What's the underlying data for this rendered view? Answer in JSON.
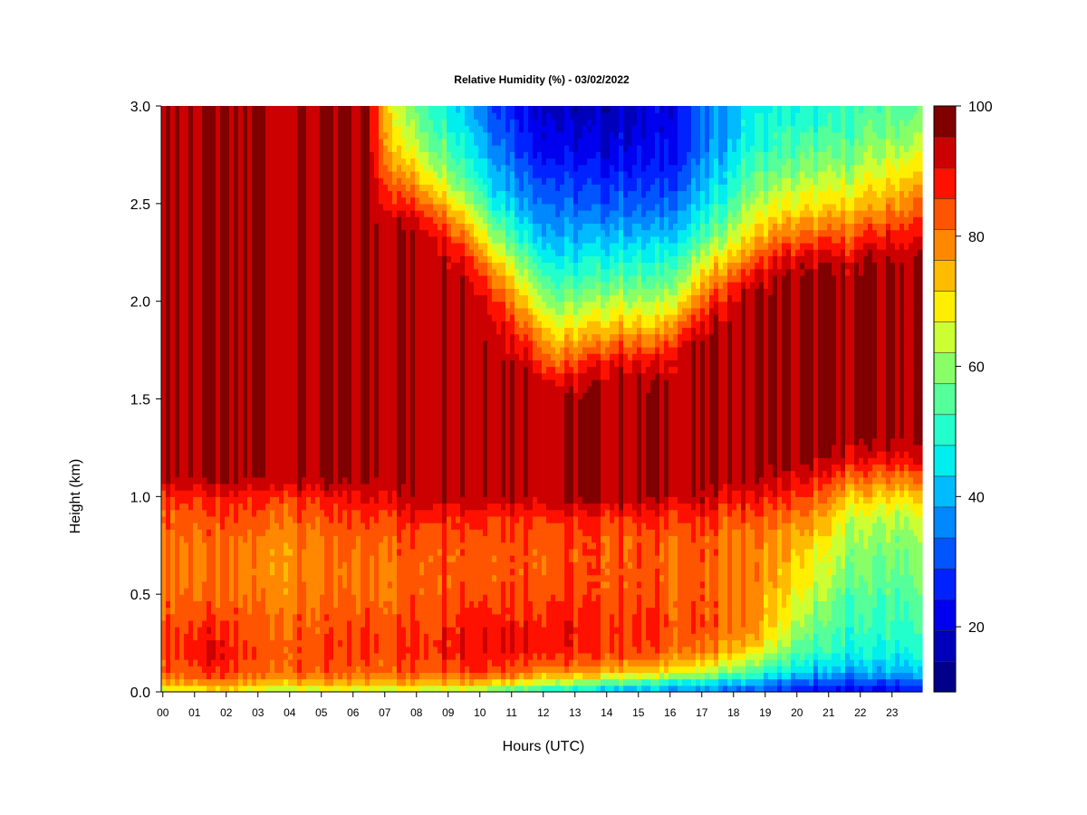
{
  "chart_data": {
    "type": "heatmap",
    "title": "Relative Humidity (%) - 03/02/2022",
    "xlabel": "Hours (UTC)",
    "ylabel": "Height (km)",
    "xlim": [
      0,
      24
    ],
    "ylim": [
      0,
      3
    ],
    "x_ticks": [
      "00",
      "01",
      "02",
      "03",
      "04",
      "05",
      "06",
      "07",
      "08",
      "09",
      "10",
      "11",
      "12",
      "13",
      "14",
      "15",
      "16",
      "17",
      "18",
      "19",
      "20",
      "21",
      "22",
      "23"
    ],
    "y_ticks": [
      "0.0",
      "0.5",
      "1.0",
      "1.5",
      "2.0",
      "2.5",
      "3.0"
    ],
    "y_tick_values": [
      0,
      0.5,
      1.0,
      1.5,
      2.0,
      2.5,
      3.0
    ],
    "colorbar": {
      "range": [
        10,
        100
      ],
      "step": 5,
      "labels": [
        "20",
        "40",
        "60",
        "80",
        "100"
      ],
      "label_values": [
        20,
        40,
        60,
        80,
        100
      ],
      "colors": [
        "#00008B",
        "#0000BB",
        "#0000EE",
        "#0022FF",
        "#0055FF",
        "#0088FF",
        "#00BBFF",
        "#00EEEE",
        "#22FFCC",
        "#55FF99",
        "#88FF66",
        "#CCFF33",
        "#FFEE00",
        "#FFBB00",
        "#FF8800",
        "#FF5500",
        "#FF1100",
        "#CC0000",
        "#800000"
      ]
    },
    "height_profiles_km": [
      0,
      0.05,
      0.1,
      0.2,
      0.3,
      0.4,
      0.5,
      0.6,
      0.7,
      0.8,
      0.9,
      1.0,
      1.1,
      1.2,
      1.3,
      1.4,
      1.5,
      1.6,
      1.7,
      1.8,
      1.9,
      2.0,
      2.1,
      2.2,
      2.3,
      2.4,
      2.5,
      2.6,
      2.7,
      2.8,
      2.9,
      3.0
    ],
    "hourly_profiles": [
      {
        "hour": 0,
        "rh": [
          68,
          80,
          88,
          90,
          90,
          88,
          86,
          85,
          85,
          86,
          88,
          92,
          100,
          100,
          100,
          100,
          100,
          100,
          100,
          100,
          100,
          100,
          100,
          100,
          100,
          100,
          100,
          100,
          100,
          100,
          100,
          100
        ]
      },
      {
        "hour": 1,
        "rh": [
          70,
          82,
          90,
          95,
          92,
          88,
          86,
          84,
          84,
          85,
          88,
          92,
          100,
          100,
          100,
          100,
          100,
          100,
          100,
          100,
          100,
          100,
          100,
          100,
          100,
          100,
          100,
          100,
          100,
          100,
          100,
          100
        ]
      },
      {
        "hour": 2,
        "rh": [
          68,
          80,
          88,
          90,
          88,
          86,
          84,
          83,
          83,
          85,
          88,
          92,
          100,
          100,
          100,
          100,
          100,
          100,
          100,
          100,
          100,
          100,
          100,
          100,
          100,
          100,
          100,
          100,
          100,
          100,
          100,
          100
        ]
      },
      {
        "hour": 3,
        "rh": [
          66,
          78,
          86,
          88,
          88,
          86,
          84,
          83,
          83,
          84,
          87,
          92,
          100,
          100,
          100,
          100,
          100,
          100,
          100,
          100,
          100,
          100,
          100,
          100,
          100,
          100,
          100,
          100,
          100,
          100,
          100,
          100
        ]
      },
      {
        "hour": 4,
        "rh": [
          66,
          78,
          86,
          88,
          87,
          86,
          84,
          83,
          83,
          84,
          87,
          91,
          100,
          100,
          100,
          100,
          100,
          100,
          100,
          100,
          100,
          100,
          100,
          100,
          100,
          100,
          100,
          100,
          100,
          100,
          100,
          100
        ]
      },
      {
        "hour": 5,
        "rh": [
          66,
          78,
          86,
          88,
          88,
          86,
          84,
          83,
          84,
          85,
          88,
          92,
          100,
          100,
          100,
          100,
          100,
          100,
          100,
          100,
          100,
          100,
          100,
          100,
          100,
          100,
          100,
          100,
          100,
          100,
          100,
          100
        ]
      },
      {
        "hour": 6,
        "rh": [
          66,
          78,
          86,
          90,
          90,
          88,
          86,
          85,
          86,
          87,
          90,
          95,
          100,
          100,
          100,
          100,
          100,
          100,
          100,
          100,
          100,
          100,
          100,
          100,
          100,
          100,
          100,
          100,
          100,
          100,
          100,
          100
        ]
      },
      {
        "hour": 7,
        "rh": [
          66,
          80,
          88,
          90,
          90,
          88,
          86,
          86,
          87,
          88,
          92,
          98,
          100,
          100,
          100,
          100,
          100,
          100,
          100,
          100,
          100,
          100,
          100,
          100,
          100,
          100,
          92,
          85,
          78,
          72,
          68,
          66
        ]
      },
      {
        "hour": 8,
        "rh": [
          66,
          80,
          88,
          92,
          92,
          90,
          88,
          88,
          88,
          90,
          94,
          100,
          100,
          100,
          100,
          100,
          100,
          100,
          100,
          100,
          100,
          100,
          100,
          100,
          100,
          95,
          86,
          76,
          68,
          62,
          58,
          55
        ]
      },
      {
        "hour": 9,
        "rh": [
          66,
          82,
          90,
          95,
          95,
          92,
          90,
          89,
          89,
          90,
          94,
          100,
          100,
          100,
          100,
          100,
          100,
          100,
          100,
          100,
          100,
          100,
          100,
          98,
          90,
          80,
          70,
          62,
          56,
          52,
          48,
          45
        ]
      },
      {
        "hour": 10,
        "rh": [
          58,
          78,
          90,
          96,
          96,
          92,
          90,
          89,
          89,
          90,
          93,
          100,
          100,
          100,
          100,
          100,
          100,
          100,
          100,
          100,
          98,
          94,
          88,
          78,
          68,
          60,
          52,
          46,
          42,
          38,
          35,
          32
        ]
      },
      {
        "hour": 11,
        "rh": [
          52,
          72,
          86,
          94,
          95,
          92,
          90,
          88,
          88,
          89,
          92,
          100,
          100,
          100,
          100,
          100,
          100,
          100,
          98,
          92,
          84,
          76,
          68,
          60,
          52,
          46,
          40,
          36,
          32,
          28,
          26,
          24
        ]
      },
      {
        "hour": 12,
        "rh": [
          46,
          66,
          82,
          92,
          94,
          92,
          90,
          88,
          88,
          88,
          92,
          100,
          100,
          100,
          100,
          100,
          100,
          94,
          84,
          76,
          68,
          60,
          54,
          48,
          42,
          38,
          34,
          30,
          26,
          22,
          20,
          18
        ]
      },
      {
        "hour": 13,
        "rh": [
          42,
          62,
          80,
          90,
          92,
          90,
          88,
          88,
          88,
          88,
          92,
          100,
          100,
          100,
          100,
          100,
          100,
          98,
          90,
          80,
          72,
          64,
          56,
          50,
          44,
          38,
          32,
          28,
          24,
          20,
          18,
          16
        ]
      },
      {
        "hour": 14,
        "rh": [
          40,
          58,
          78,
          90,
          92,
          90,
          88,
          88,
          88,
          88,
          92,
          100,
          100,
          100,
          100,
          100,
          100,
          100,
          96,
          86,
          76,
          68,
          60,
          52,
          46,
          40,
          34,
          30,
          26,
          22,
          20,
          18
        ]
      },
      {
        "hour": 15,
        "rh": [
          38,
          54,
          74,
          88,
          90,
          90,
          88,
          87,
          87,
          88,
          92,
          100,
          100,
          100,
          100,
          100,
          100,
          98,
          92,
          82,
          72,
          64,
          56,
          50,
          44,
          38,
          32,
          28,
          24,
          22,
          20,
          20
        ]
      },
      {
        "hour": 16,
        "rh": [
          36,
          50,
          70,
          84,
          88,
          88,
          87,
          86,
          86,
          87,
          91,
          98,
          100,
          100,
          100,
          100,
          100,
          100,
          100,
          96,
          86,
          76,
          66,
          58,
          50,
          44,
          38,
          34,
          30,
          28,
          26,
          26
        ]
      },
      {
        "hour": 17,
        "rh": [
          34,
          46,
          64,
          80,
          86,
          86,
          86,
          86,
          86,
          87,
          90,
          96,
          100,
          100,
          100,
          100,
          100,
          100,
          100,
          100,
          98,
          92,
          84,
          74,
          64,
          56,
          50,
          46,
          42,
          40,
          38,
          38
        ]
      },
      {
        "hour": 18,
        "rh": [
          32,
          42,
          58,
          74,
          82,
          84,
          84,
          84,
          84,
          85,
          88,
          94,
          100,
          100,
          100,
          100,
          100,
          100,
          100,
          100,
          100,
          100,
          96,
          86,
          78,
          70,
          64,
          58,
          54,
          50,
          48,
          46
        ]
      },
      {
        "hour": 19,
        "rh": [
          28,
          36,
          48,
          62,
          70,
          74,
          76,
          78,
          80,
          82,
          86,
          92,
          98,
          100,
          100,
          100,
          100,
          100,
          100,
          100,
          100,
          100,
          100,
          96,
          86,
          78,
          70,
          64,
          58,
          54,
          52,
          50
        ]
      },
      {
        "hour": 20,
        "rh": [
          24,
          32,
          42,
          52,
          58,
          62,
          66,
          70,
          72,
          76,
          82,
          88,
          94,
          100,
          100,
          100,
          100,
          100,
          100,
          100,
          100,
          100,
          100,
          98,
          90,
          80,
          72,
          66,
          60,
          56,
          52,
          50
        ]
      },
      {
        "hour": 21,
        "rh": [
          22,
          30,
          40,
          50,
          54,
          56,
          58,
          62,
          64,
          66,
          70,
          78,
          88,
          96,
          100,
          100,
          100,
          100,
          100,
          100,
          100,
          100,
          100,
          98,
          90,
          82,
          74,
          68,
          62,
          58,
          54,
          52
        ]
      },
      {
        "hour": 22,
        "rh": [
          22,
          30,
          40,
          48,
          52,
          54,
          56,
          58,
          60,
          62,
          66,
          74,
          84,
          94,
          100,
          100,
          100,
          100,
          100,
          100,
          100,
          100,
          100,
          100,
          94,
          86,
          78,
          72,
          66,
          62,
          58,
          56
        ]
      },
      {
        "hour": 23,
        "rh": [
          24,
          32,
          42,
          50,
          54,
          56,
          58,
          60,
          62,
          64,
          68,
          76,
          86,
          96,
          100,
          100,
          100,
          100,
          100,
          100,
          100,
          100,
          100,
          100,
          96,
          90,
          84,
          78,
          72,
          66,
          62,
          58
        ]
      }
    ]
  }
}
